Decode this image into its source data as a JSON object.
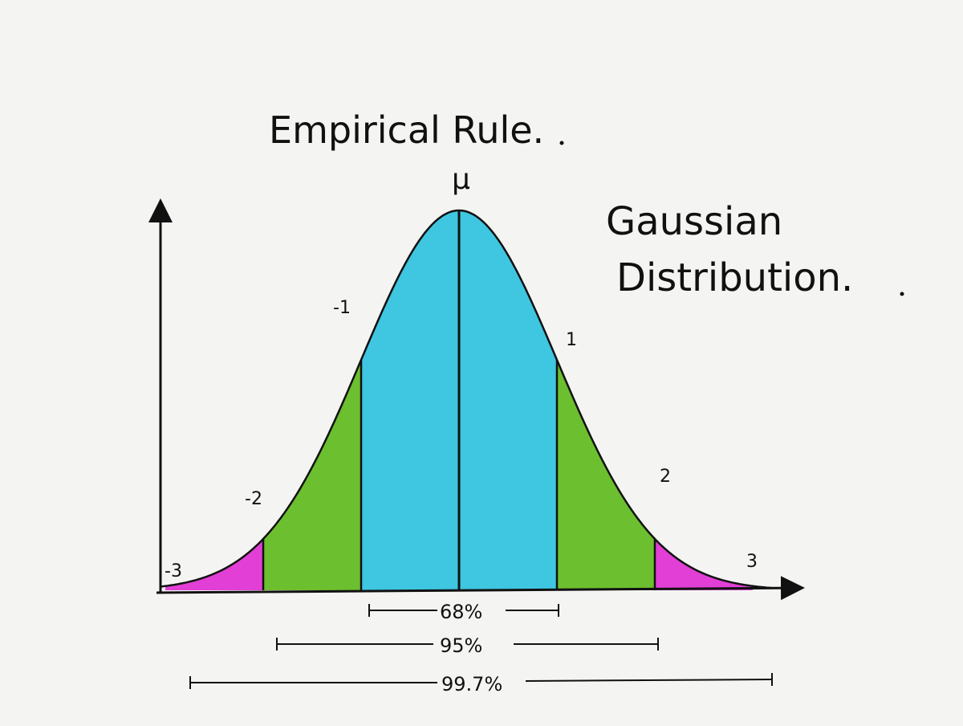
{
  "title": "Empirical Rule.",
  "side_label": [
    "Gaussian",
    "Distribution."
  ],
  "mu_label": "μ",
  "sigma_labels": [
    "-3",
    "-2",
    "-1",
    "1",
    "2",
    "3"
  ],
  "ranges": [
    "68%",
    "95%",
    "99.7%"
  ],
  "colors": {
    "within_1sd": "#3fc6e0",
    "within_2sd": "#6cbf2e",
    "within_3sd": "#e23fd6",
    "ink": "#111111",
    "paper": "#f4f4f2"
  }
}
